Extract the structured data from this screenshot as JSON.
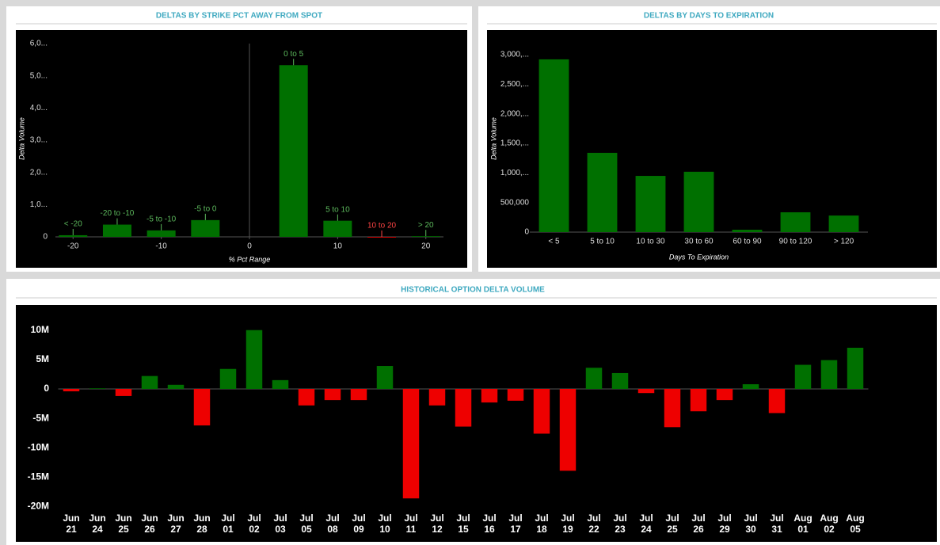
{
  "chart_data": [
    {
      "type": "bar",
      "title": "DELTAS BY STRIKE PCT AWAY FROM SPOT",
      "xlabel": "% Pct Range",
      "ylabel": "Delta Volume",
      "x": [
        -20,
        -15,
        -10,
        -5,
        5,
        10,
        15,
        20
      ],
      "labels": [
        "< -20",
        "-20 to -10",
        "-5 to -10",
        "-5 to 0",
        "0 to 5",
        "5 to 10",
        "10 to 20",
        "> 20"
      ],
      "values": [
        50000,
        380000,
        200000,
        520000,
        5330000,
        500000,
        -20000,
        20000
      ],
      "color": "#007000",
      "negative_color": "#ff0000",
      "label_color": "#5cb85c",
      "negative_label_color": "#ff4444",
      "xlim": [
        -22,
        22
      ],
      "xticks": [
        -20,
        -10,
        0,
        10,
        20
      ],
      "ylim": [
        0,
        6000000
      ],
      "yticks": [
        0,
        {
          "value": 1000000,
          "label": "1,0..."
        },
        {
          "value": 2000000,
          "label": "2,0..."
        },
        {
          "value": 3000000,
          "label": "3,0..."
        },
        {
          "value": 4000000,
          "label": "4,0..."
        },
        {
          "value": 5000000,
          "label": "5,0..."
        },
        {
          "value": 6000000,
          "label": "6,0..."
        }
      ],
      "grid": false
    },
    {
      "type": "bar",
      "title": "DELTAS BY DAYS TO EXPIRATION",
      "xlabel": "Days To Expiration",
      "ylabel": "Delta Volume",
      "categories": [
        "< 5",
        "5 to 10",
        "10 to 30",
        "30 to 60",
        "60 to 90",
        "90 to 120",
        "> 120"
      ],
      "values": [
        2920000,
        1340000,
        950000,
        1020000,
        40000,
        335000,
        280000
      ],
      "color": "#007000",
      "negative_color": "#ff0000",
      "ylim": [
        0,
        3200000
      ],
      "yticks": [
        0,
        {
          "value": 500000,
          "label": "500,000"
        },
        {
          "value": 1000000,
          "label": "1,000,..."
        },
        {
          "value": 1500000,
          "label": "1,500,..."
        },
        {
          "value": 2000000,
          "label": "2,000,..."
        },
        {
          "value": 2500000,
          "label": "2,500,..."
        },
        {
          "value": 3000000,
          "label": "3,000,..."
        }
      ],
      "grid": false
    },
    {
      "type": "bar",
      "title": "HISTORICAL OPTION DELTA VOLUME",
      "categories": [
        "Jun 21",
        "Jun 24",
        "Jun 25",
        "Jun 26",
        "Jun 27",
        "Jun 28",
        "Jul 01",
        "Jul 02",
        "Jul 03",
        "Jul 05",
        "Jul 08",
        "Jul 09",
        "Jul 10",
        "Jul 11",
        "Jul 12",
        "Jul 15",
        "Jul 16",
        "Jul 17",
        "Jul 18",
        "Jul 19",
        "Jul 22",
        "Jul 23",
        "Jul 24",
        "Jul 25",
        "Jul 26",
        "Jul 29",
        "Jul 30",
        "Jul 31",
        "Aug 01",
        "Aug 02",
        "Aug 05"
      ],
      "values": [
        -400000,
        100000,
        -1200000,
        2200000,
        700000,
        -6200000,
        3400000,
        10000000,
        1500000,
        -2800000,
        -1900000,
        -1900000,
        3900000,
        -18600000,
        -2800000,
        -6400000,
        -2300000,
        -2000000,
        -7600000,
        -13900000,
        3600000,
        2700000,
        -700000,
        -6500000,
        -3800000,
        -1900000,
        800000,
        -4100000,
        4100000,
        4900000,
        7000000
      ],
      "color": "#007000",
      "negative_color": "#ee0000",
      "ylim": [
        -21000000,
        14000000
      ],
      "yticks": [
        {
          "value": -20000000,
          "label": "-20M"
        },
        {
          "value": -15000000,
          "label": "-15M"
        },
        {
          "value": -10000000,
          "label": "-10M"
        },
        {
          "value": -5000000,
          "label": "-5M"
        },
        0,
        {
          "value": 5000000,
          "label": "5M"
        },
        {
          "value": 10000000,
          "label": "10M"
        }
      ],
      "grid": false
    }
  ]
}
